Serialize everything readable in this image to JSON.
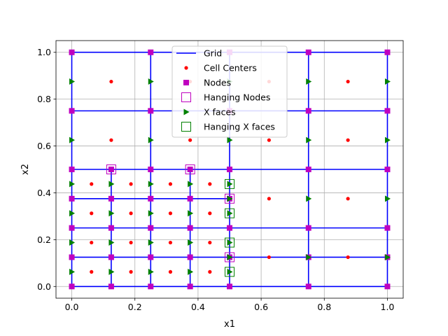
{
  "chart_data": {
    "type": "scatter",
    "title": "",
    "xlabel": "x1",
    "ylabel": "x2",
    "xlim": [
      -0.05,
      1.05
    ],
    "ylim": [
      -0.05,
      1.05
    ],
    "grid": true,
    "legend_position": "top-center",
    "x_ticks": [
      "0.0",
      "0.2",
      "0.4",
      "0.6",
      "0.8",
      "1.0"
    ],
    "y_ticks": [
      "0.0",
      "0.2",
      "0.4",
      "0.6",
      "0.8",
      "1.0"
    ],
    "colors": {
      "grid": "#0000ff",
      "cell_centers": "#ff0000",
      "nodes": "#bf00bf",
      "x_faces": "#008000",
      "axis_grid": "#b0b0b0"
    },
    "grid_lines": {
      "horizontal": [
        {
          "y": 0.0,
          "x0": 0.0,
          "x1": 1.0
        },
        {
          "y": 0.125,
          "x0": 0.0,
          "x1": 1.0
        },
        {
          "y": 0.25,
          "x0": 0.0,
          "x1": 1.0
        },
        {
          "y": 0.375,
          "x0": 0.0,
          "x1": 0.5
        },
        {
          "y": 0.5,
          "x0": 0.0,
          "x1": 1.0
        },
        {
          "y": 0.75,
          "x0": 0.0,
          "x1": 1.0
        },
        {
          "y": 1.0,
          "x0": 0.0,
          "x1": 1.0
        }
      ],
      "vertical": [
        {
          "x": 0.0,
          "y0": 0.0,
          "y1": 1.0
        },
        {
          "x": 0.125,
          "y0": 0.0,
          "y1": 0.5
        },
        {
          "x": 0.25,
          "y0": 0.0,
          "y1": 1.0
        },
        {
          "x": 0.375,
          "y0": 0.0,
          "y1": 0.5
        },
        {
          "x": 0.5,
          "y0": 0.0,
          "y1": 1.0
        },
        {
          "x": 0.75,
          "y0": 0.0,
          "y1": 1.0
        },
        {
          "x": 1.0,
          "y0": 0.0,
          "y1": 1.0
        }
      ]
    },
    "series": [
      {
        "name": "Grid",
        "marker": "line"
      },
      {
        "name": "Cell Centers",
        "marker": "dot",
        "points": [
          [
            0.0625,
            0.0625
          ],
          [
            0.1875,
            0.0625
          ],
          [
            0.3125,
            0.0625
          ],
          [
            0.4375,
            0.0625
          ],
          [
            0.0625,
            0.1875
          ],
          [
            0.1875,
            0.1875
          ],
          [
            0.3125,
            0.1875
          ],
          [
            0.4375,
            0.1875
          ],
          [
            0.0625,
            0.3125
          ],
          [
            0.1875,
            0.3125
          ],
          [
            0.3125,
            0.3125
          ],
          [
            0.4375,
            0.3125
          ],
          [
            0.0625,
            0.4375
          ],
          [
            0.1875,
            0.4375
          ],
          [
            0.3125,
            0.4375
          ],
          [
            0.4375,
            0.4375
          ],
          [
            0.125,
            0.625
          ],
          [
            0.375,
            0.625
          ],
          [
            0.125,
            0.875
          ],
          [
            0.375,
            0.875
          ],
          [
            0.625,
            0.125
          ],
          [
            0.875,
            0.125
          ],
          [
            0.625,
            0.375
          ],
          [
            0.875,
            0.375
          ],
          [
            0.625,
            0.625
          ],
          [
            0.875,
            0.625
          ],
          [
            0.625,
            0.875
          ],
          [
            0.875,
            0.875
          ]
        ]
      },
      {
        "name": "Nodes",
        "marker": "square",
        "points": [
          [
            0,
            0
          ],
          [
            0.125,
            0
          ],
          [
            0.25,
            0
          ],
          [
            0.375,
            0
          ],
          [
            0.5,
            0
          ],
          [
            0.75,
            0
          ],
          [
            1,
            0
          ],
          [
            0,
            0.125
          ],
          [
            0.125,
            0.125
          ],
          [
            0.25,
            0.125
          ],
          [
            0.375,
            0.125
          ],
          [
            0.5,
            0.125
          ],
          [
            0.75,
            0.125
          ],
          [
            1,
            0.125
          ],
          [
            0,
            0.25
          ],
          [
            0.125,
            0.25
          ],
          [
            0.25,
            0.25
          ],
          [
            0.375,
            0.25
          ],
          [
            0.5,
            0.25
          ],
          [
            0.75,
            0.25
          ],
          [
            1,
            0.25
          ],
          [
            0,
            0.375
          ],
          [
            0.125,
            0.375
          ],
          [
            0.25,
            0.375
          ],
          [
            0.375,
            0.375
          ],
          [
            0.5,
            0.375
          ],
          [
            0,
            0.5
          ],
          [
            0.125,
            0.5
          ],
          [
            0.25,
            0.5
          ],
          [
            0.375,
            0.5
          ],
          [
            0.5,
            0.5
          ],
          [
            0.75,
            0.5
          ],
          [
            1,
            0.5
          ],
          [
            0,
            0.75
          ],
          [
            0.25,
            0.75
          ],
          [
            0.5,
            0.75
          ],
          [
            0.75,
            0.75
          ],
          [
            1,
            0.75
          ],
          [
            0,
            1
          ],
          [
            0.25,
            1
          ],
          [
            0.5,
            1
          ],
          [
            0.75,
            1
          ],
          [
            1,
            1
          ]
        ]
      },
      {
        "name": "Hanging Nodes",
        "marker": "open-square",
        "points": [
          [
            0.125,
            0.5
          ],
          [
            0.375,
            0.5
          ],
          [
            0.5,
            0.125
          ],
          [
            0.5,
            0.375
          ]
        ]
      },
      {
        "name": "X faces",
        "marker": "triangle-right",
        "points": [
          [
            0,
            0.0625
          ],
          [
            0.125,
            0.0625
          ],
          [
            0.25,
            0.0625
          ],
          [
            0.375,
            0.0625
          ],
          [
            0.5,
            0.0625
          ],
          [
            0,
            0.1875
          ],
          [
            0.125,
            0.1875
          ],
          [
            0.25,
            0.1875
          ],
          [
            0.375,
            0.1875
          ],
          [
            0.5,
            0.1875
          ],
          [
            0,
            0.3125
          ],
          [
            0.125,
            0.3125
          ],
          [
            0.25,
            0.3125
          ],
          [
            0.375,
            0.3125
          ],
          [
            0.5,
            0.3125
          ],
          [
            0,
            0.4375
          ],
          [
            0.125,
            0.4375
          ],
          [
            0.25,
            0.4375
          ],
          [
            0.375,
            0.4375
          ],
          [
            0.5,
            0.4375
          ],
          [
            0,
            0.625
          ],
          [
            0.25,
            0.625
          ],
          [
            0.5,
            0.625
          ],
          [
            0,
            0.875
          ],
          [
            0.25,
            0.875
          ],
          [
            0.5,
            0.875
          ],
          [
            0.5,
            0.125
          ],
          [
            0.75,
            0.125
          ],
          [
            1,
            0.125
          ],
          [
            0.5,
            0.375
          ],
          [
            0.75,
            0.375
          ],
          [
            1,
            0.375
          ],
          [
            0.75,
            0.625
          ],
          [
            1,
            0.625
          ],
          [
            0.75,
            0.875
          ],
          [
            1,
            0.875
          ]
        ]
      },
      {
        "name": "Hanging X faces",
        "marker": "open-square-green",
        "points": [
          [
            0.5,
            0.0625
          ],
          [
            0.5,
            0.1875
          ],
          [
            0.5,
            0.3125
          ],
          [
            0.5,
            0.4375
          ]
        ]
      }
    ]
  }
}
